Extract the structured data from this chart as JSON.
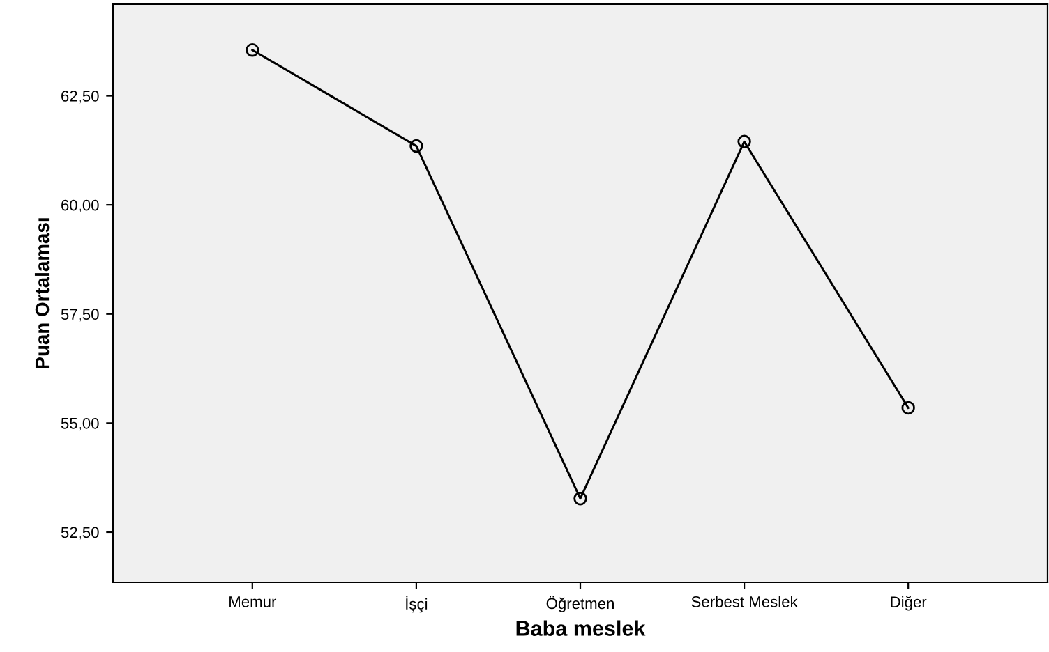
{
  "chart_data": {
    "type": "line",
    "xlabel": "Baba meslek",
    "ylabel": "Puan Ortalaması",
    "categories": [
      "Memur",
      "İşçi",
      "Öğretmen",
      "Serbest Meslek",
      "Diğer"
    ],
    "series": [
      {
        "color": "#000000",
        "values": [
          63.55,
          61.35,
          53.27,
          61.45,
          55.35
        ]
      }
    ],
    "ylim": [
      51.35,
      64.6
    ],
    "yticks": [
      {
        "value": 52.5,
        "label": "52,50"
      },
      {
        "value": 55,
        "label": "55,00"
      },
      {
        "value": 57.5,
        "label": "57,50"
      },
      {
        "value": 60,
        "label": "60,00"
      },
      {
        "value": 62.5,
        "label": "62,50"
      }
    ],
    "marker": "circle",
    "line_style": "solid",
    "grid": false,
    "legend": false
  }
}
